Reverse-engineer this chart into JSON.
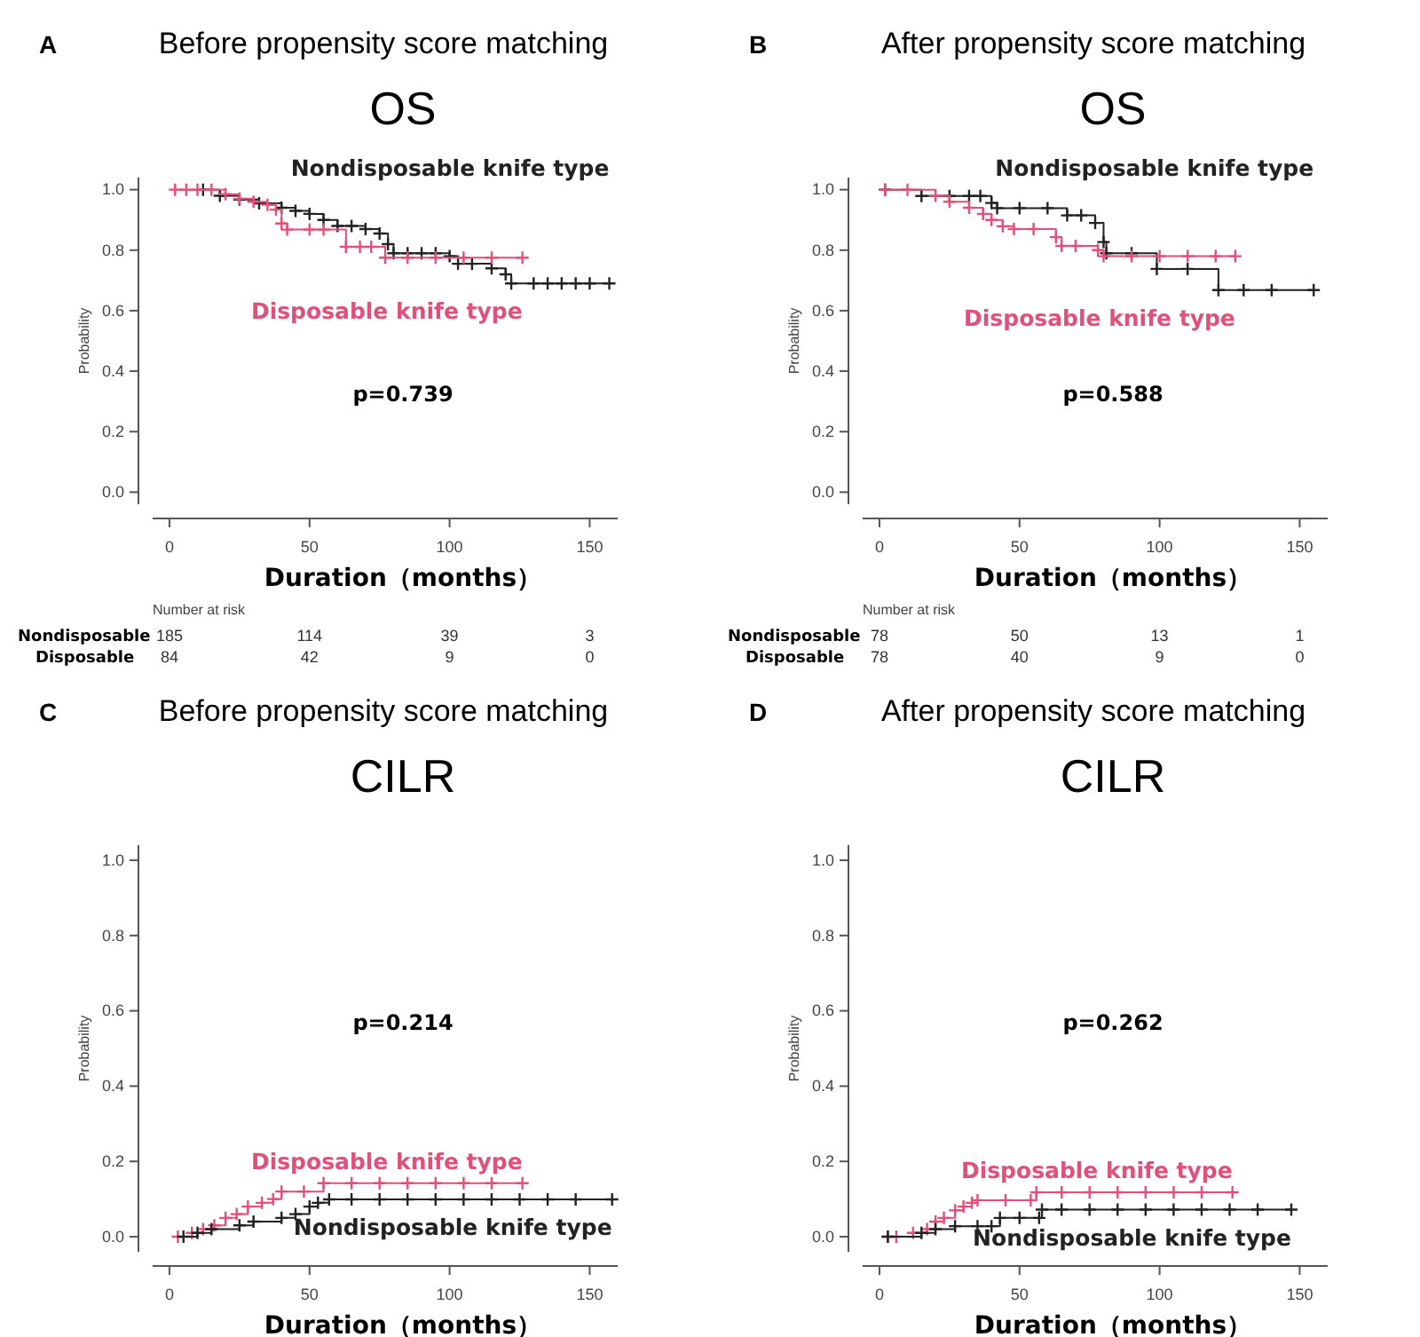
{
  "chart_data": [
    {
      "type": "step",
      "title": "Before propensity score matching",
      "subtitle": "OS",
      "xlabel": "Duration（months）",
      "ylabel": "Probability",
      "xlim": [
        -6,
        160
      ],
      "ylim": [
        -0.04,
        1.04
      ],
      "xticks": [
        0,
        50,
        100,
        150
      ],
      "yticks": [
        {
          "value": 0,
          "label": "0.0"
        },
        {
          "value": 0.2,
          "label": "0.2"
        },
        {
          "value": 0.4,
          "label": "0.4"
        },
        {
          "value": 0.6,
          "label": "0.6"
        },
        {
          "value": 0.8,
          "label": "0.8"
        },
        {
          "value": 1,
          "label": "1.0"
        }
      ],
      "marker": "cross",
      "line_style": "solid",
      "annotations": [
        "A",
        "p=0.739",
        "Number at risk",
        "Nondisposable",
        "185",
        "114",
        "39",
        "3",
        "Disposable",
        "84",
        "42",
        "9",
        "0"
      ],
      "series": [
        {
          "name": "Nondisposable knife type",
          "color": "#222222",
          "x": [
            12,
            18,
            25,
            32,
            40,
            45,
            50,
            55,
            60,
            65,
            70,
            75,
            78,
            80,
            85,
            90,
            95,
            100,
            103,
            108,
            115,
            120,
            122,
            130,
            135,
            140,
            145,
            150,
            157
          ],
          "values": [
            1,
            0.98,
            0.967,
            0.955,
            0.94,
            0.93,
            0.92,
            0.9,
            0.88,
            0.88,
            0.87,
            0.855,
            0.82,
            0.79,
            0.79,
            0.79,
            0.79,
            0.78,
            0.755,
            0.755,
            0.74,
            0.72,
            0.69,
            0.69,
            0.69,
            0.69,
            0.69,
            0.69,
            0.69
          ]
        },
        {
          "name": "Disposable knife type",
          "color": "#e0507a",
          "x": [
            2,
            6,
            10,
            15,
            20,
            25,
            30,
            35,
            38,
            40,
            42,
            50,
            55,
            63,
            68,
            72,
            77,
            85,
            95,
            105,
            115,
            126
          ],
          "values": [
            1,
            1,
            1,
            1,
            0.985,
            0.97,
            0.96,
            0.95,
            0.934,
            0.888,
            0.868,
            0.868,
            0.868,
            0.811,
            0.811,
            0.811,
            0.775,
            0.775,
            0.775,
            0.775,
            0.775,
            0.775
          ]
        }
      ]
    },
    {
      "type": "step",
      "title": "After propensity score matching",
      "subtitle": "OS",
      "xlabel": "Duration（months）",
      "ylabel": "Probability",
      "xlim": [
        -6,
        160
      ],
      "ylim": [
        -0.04,
        1.04
      ],
      "xticks": [
        0,
        50,
        100,
        150
      ],
      "yticks": [
        {
          "value": 0,
          "label": "0.0"
        },
        {
          "value": 0.2,
          "label": "0.2"
        },
        {
          "value": 0.4,
          "label": "0.4"
        },
        {
          "value": 0.6,
          "label": "0.6"
        },
        {
          "value": 0.8,
          "label": "0.8"
        },
        {
          "value": 1,
          "label": "1.0"
        }
      ],
      "marker": "cross",
      "line_style": "solid",
      "annotations": [
        "B",
        "p=0.588",
        "Number at risk",
        "Nondisposable",
        "78",
        "50",
        "13",
        "1",
        "Disposable",
        "78",
        "40",
        "9",
        "0"
      ],
      "series": [
        {
          "name": "Nondisposable knife type",
          "color": "#222222",
          "x": [
            2,
            15,
            25,
            32,
            36,
            40,
            42,
            50,
            60,
            67,
            72,
            77,
            80,
            81,
            90,
            99,
            110,
            121,
            130,
            140,
            155
          ],
          "values": [
            1,
            0.979,
            0.979,
            0.979,
            0.979,
            0.956,
            0.939,
            0.939,
            0.939,
            0.915,
            0.915,
            0.89,
            0.827,
            0.79,
            0.79,
            0.738,
            0.738,
            0.668,
            0.668,
            0.668,
            0.668
          ]
        },
        {
          "name": "Disposable knife type",
          "color": "#e0507a",
          "x": [
            2,
            10,
            20,
            25,
            32,
            37,
            40,
            44,
            48,
            55,
            63,
            65,
            70,
            78,
            80,
            90,
            100,
            110,
            120,
            127
          ],
          "values": [
            1,
            1,
            0.98,
            0.96,
            0.94,
            0.92,
            0.9,
            0.879,
            0.87,
            0.87,
            0.843,
            0.814,
            0.814,
            0.8,
            0.78,
            0.78,
            0.78,
            0.78,
            0.78,
            0.78
          ]
        }
      ]
    },
    {
      "type": "step",
      "title": "Before propensity score matching",
      "subtitle": "CILR",
      "xlabel": "Duration（months）",
      "ylabel": "Probability",
      "xlim": [
        -6,
        160
      ],
      "ylim": [
        -0.04,
        1.04
      ],
      "xticks": [
        0,
        50,
        100,
        150
      ],
      "yticks": [
        {
          "value": 0,
          "label": "0.0"
        },
        {
          "value": 0.2,
          "label": "0.2"
        },
        {
          "value": 0.4,
          "label": "0.4"
        },
        {
          "value": 0.6,
          "label": "0.6"
        },
        {
          "value": 0.8,
          "label": "0.8"
        },
        {
          "value": 1,
          "label": "1.0"
        }
      ],
      "marker": "cross",
      "line_style": "solid",
      "annotations": [
        "C",
        "p=0.214"
      ],
      "series": [
        {
          "name": "Disposable knife type",
          "color": "#e0507a",
          "x": [
            3,
            8,
            12,
            16,
            20,
            24,
            28,
            33,
            37,
            40,
            48,
            55,
            65,
            75,
            85,
            95,
            105,
            115,
            126
          ],
          "values": [
            0,
            0.01,
            0.02,
            0.03,
            0.05,
            0.06,
            0.08,
            0.09,
            0.1,
            0.12,
            0.12,
            0.142,
            0.142,
            0.142,
            0.142,
            0.142,
            0.142,
            0.142,
            0.142
          ]
        },
        {
          "name": "Nondisposable knife type",
          "color": "#222222",
          "x": [
            5,
            10,
            15,
            25,
            30,
            40,
            45,
            50,
            53,
            57,
            65,
            75,
            85,
            95,
            105,
            115,
            125,
            135,
            145,
            158
          ],
          "values": [
            0,
            0.01,
            0.02,
            0.03,
            0.04,
            0.05,
            0.06,
            0.08,
            0.09,
            0.099,
            0.099,
            0.099,
            0.099,
            0.099,
            0.099,
            0.099,
            0.099,
            0.099,
            0.099,
            0.099
          ]
        }
      ]
    },
    {
      "type": "step",
      "title": "After propensity score matching",
      "subtitle": "CILR",
      "xlabel": "Duration（months）",
      "ylabel": "Probability",
      "xlim": [
        -6,
        160
      ],
      "ylim": [
        -0.04,
        1.04
      ],
      "xticks": [
        0,
        50,
        100,
        150
      ],
      "yticks": [
        {
          "value": 0,
          "label": "0.0"
        },
        {
          "value": 0.2,
          "label": "0.2"
        },
        {
          "value": 0.4,
          "label": "0.4"
        },
        {
          "value": 0.6,
          "label": "0.6"
        },
        {
          "value": 0.8,
          "label": "0.8"
        },
        {
          "value": 1,
          "label": "1.0"
        }
      ],
      "marker": "cross",
      "line_style": "solid",
      "annotations": [
        "D",
        "p=0.262"
      ],
      "series": [
        {
          "name": "Disposable knife type",
          "color": "#e0507a",
          "x": [
            3,
            6,
            12,
            17,
            20,
            23,
            27,
            30,
            33,
            35,
            45,
            54,
            56,
            65,
            75,
            85,
            95,
            105,
            115,
            126
          ],
          "values": [
            0,
            0,
            0.01,
            0.02,
            0.04,
            0.05,
            0.07,
            0.08,
            0.09,
            0.097,
            0.097,
            0.097,
            0.118,
            0.118,
            0.118,
            0.118,
            0.118,
            0.118,
            0.118,
            0.118
          ]
        },
        {
          "name": "Nondisposable knife type",
          "color": "#222222",
          "x": [
            3,
            15,
            20,
            27,
            35,
            40,
            43,
            50,
            57,
            58,
            65,
            75,
            85,
            95,
            105,
            115,
            125,
            135,
            147
          ],
          "values": [
            0,
            0.01,
            0.02,
            0.028,
            0.028,
            0.028,
            0.05,
            0.05,
            0.05,
            0.072,
            0.072,
            0.072,
            0.072,
            0.072,
            0.072,
            0.072,
            0.072,
            0.072,
            0.072
          ]
        }
      ]
    }
  ]
}
